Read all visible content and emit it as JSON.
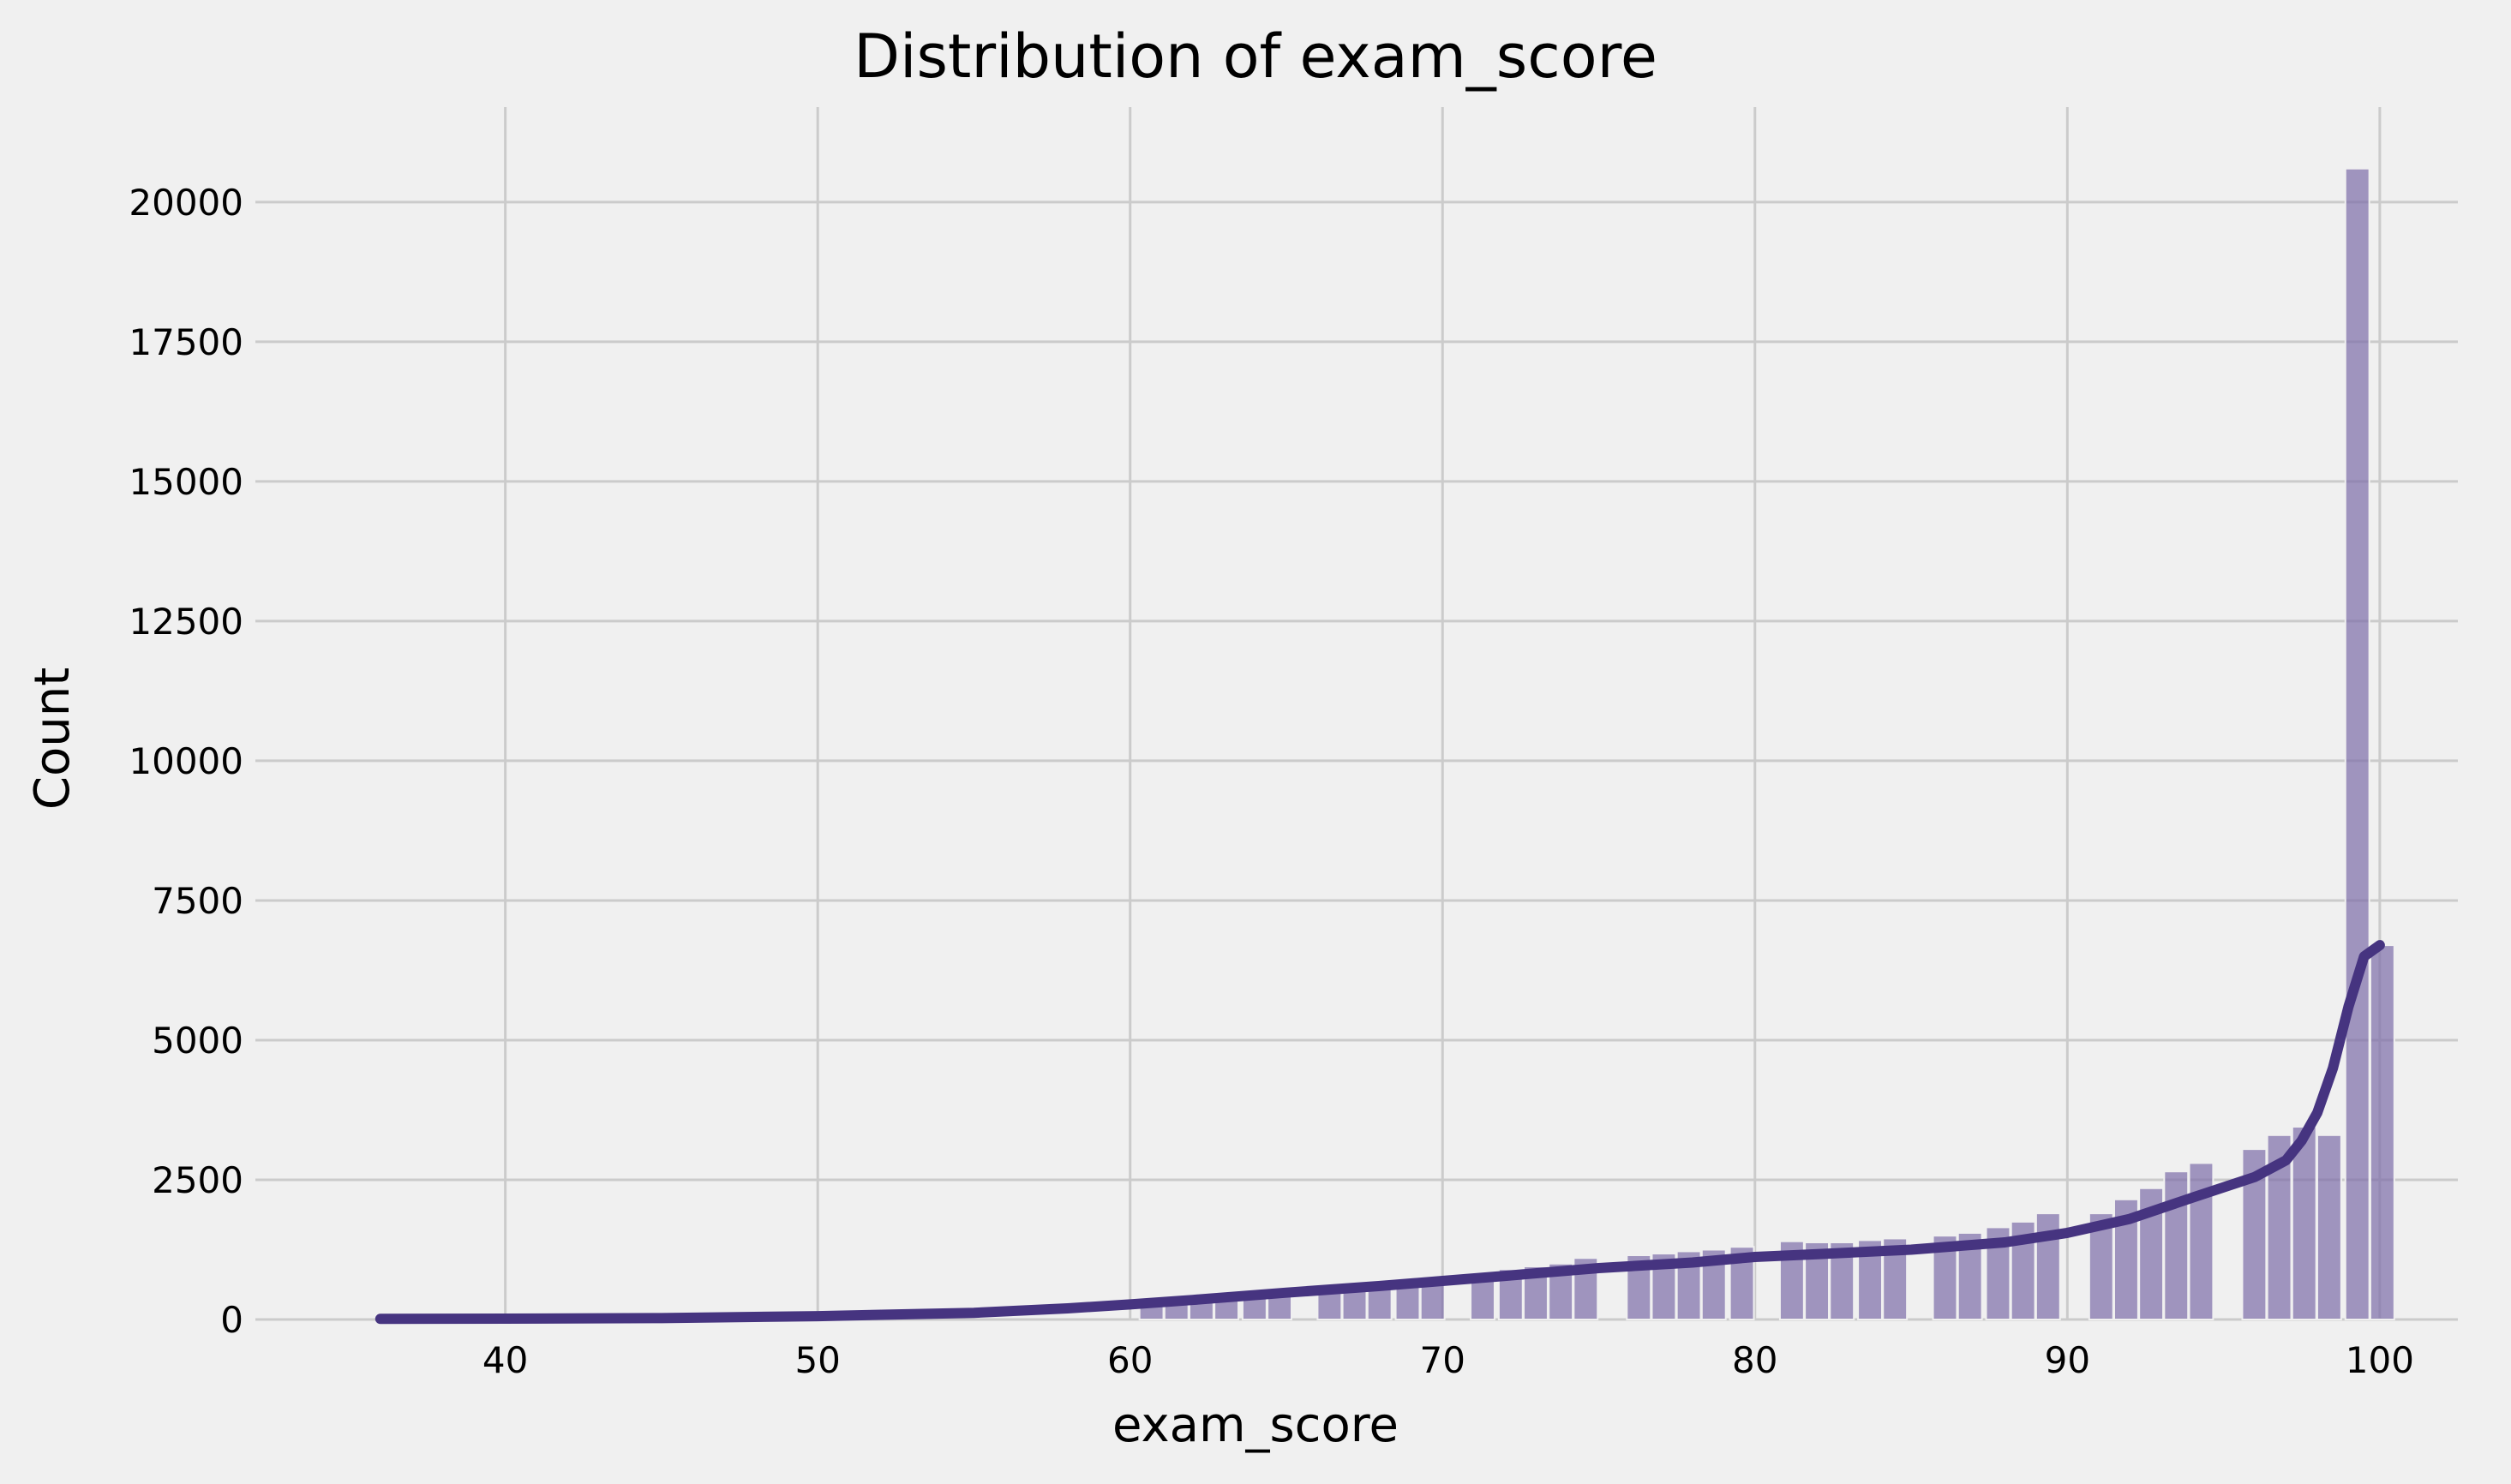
{
  "chart_data": {
    "type": "bar",
    "title": "Distribution of exam_score",
    "xlabel": "exam_score",
    "ylabel": "Count",
    "xlim": [
      32,
      102.5
    ],
    "ylim": [
      0,
      21700
    ],
    "x_ticks": [
      40,
      50,
      60,
      70,
      80,
      90,
      100
    ],
    "x_tick_labels": [
      "40",
      "50",
      "60",
      "70",
      "80",
      "90",
      "100"
    ],
    "y_ticks": [
      0,
      2500,
      5000,
      7500,
      10000,
      12500,
      15000,
      17500,
      20000
    ],
    "y_tick_labels": [
      "0",
      "2500",
      "5000",
      "7500",
      "10000",
      "12500",
      "15000",
      "17500",
      "20000"
    ],
    "grid": true,
    "colors": {
      "bar": "#7c6ca8",
      "kde": "#463480",
      "background": "#f0f0f0",
      "grid": "#cbcbcb"
    },
    "histogram": {
      "bin_width": 0.82,
      "bin_left": [
        36.0,
        60.3,
        61.1,
        61.9,
        62.7,
        63.6,
        64.4,
        66.0,
        66.8,
        67.6,
        68.5,
        69.3,
        70.9,
        71.8,
        72.6,
        73.4,
        74.2,
        75.9,
        76.7,
        77.5,
        78.3,
        79.2,
        80.8,
        81.6,
        82.4,
        83.3,
        84.1,
        85.7,
        86.5,
        87.4,
        88.2,
        89.0,
        90.7,
        91.5,
        92.3,
        93.1,
        93.9,
        95.6,
        96.4,
        97.2,
        98.0,
        98.9,
        99.7
      ],
      "values": [
        30,
        300,
        330,
        360,
        420,
        460,
        500,
        550,
        600,
        650,
        700,
        750,
        800,
        900,
        950,
        1000,
        1100,
        1150,
        1180,
        1220,
        1250,
        1300,
        1400,
        1380,
        1380,
        1420,
        1450,
        1500,
        1550,
        1650,
        1750,
        1900,
        1900,
        2150,
        2350,
        2650,
        2800,
        3050,
        3300,
        3450,
        3300,
        20600,
        6700
      ]
    },
    "kde": {
      "x": [
        36,
        40,
        45,
        50,
        55,
        58,
        60,
        62,
        65,
        68,
        70,
        72,
        75,
        78,
        80,
        82,
        85,
        88,
        90,
        92,
        94,
        96,
        97,
        97.5,
        98,
        98.5,
        99,
        99.5,
        100
      ],
      "y": [
        10,
        15,
        25,
        60,
        120,
        200,
        270,
        350,
        480,
        600,
        690,
        780,
        920,
        1020,
        1120,
        1170,
        1250,
        1380,
        1550,
        1800,
        2180,
        2550,
        2850,
        3200,
        3700,
        4500,
        5600,
        6500,
        6700
      ]
    }
  }
}
